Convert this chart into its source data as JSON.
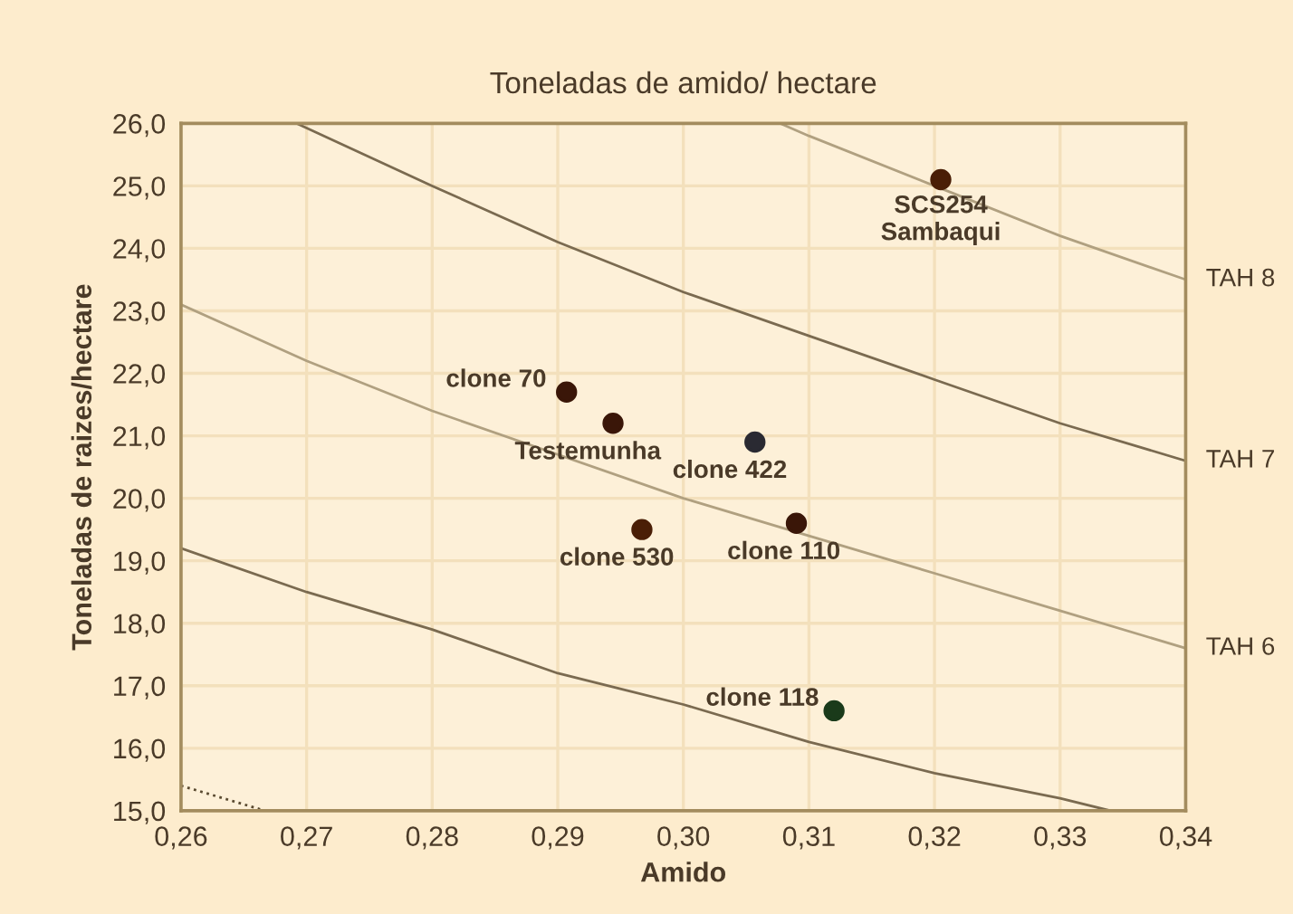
{
  "chart_data": {
    "type": "scatter",
    "title": "Toneladas de amido/ hectare",
    "xlabel": "Amido",
    "ylabel": "Toneladas de raizes/hectare",
    "xlim": [
      0.26,
      0.34
    ],
    "ylim": [
      15,
      26
    ],
    "xticks": [
      {
        "value": 0.26,
        "label": "0,26"
      },
      {
        "value": 0.27,
        "label": "0,27"
      },
      {
        "value": 0.28,
        "label": "0,28"
      },
      {
        "value": 0.29,
        "label": "0,29"
      },
      {
        "value": 0.3,
        "label": "0,30"
      },
      {
        "value": 0.31,
        "label": "0,31"
      },
      {
        "value": 0.32,
        "label": "0,32"
      },
      {
        "value": 0.33,
        "label": "0,33"
      },
      {
        "value": 0.34,
        "label": "0,34"
      }
    ],
    "yticks": [
      {
        "value": 15,
        "label": "15,0"
      },
      {
        "value": 16,
        "label": "16,0"
      },
      {
        "value": 17,
        "label": "17,0"
      },
      {
        "value": 18,
        "label": "18,0"
      },
      {
        "value": 19,
        "label": "19,0"
      },
      {
        "value": 20,
        "label": "20,0"
      },
      {
        "value": 21,
        "label": "21,0"
      },
      {
        "value": 22,
        "label": "22,0"
      },
      {
        "value": 23,
        "label": "23,0"
      },
      {
        "value": 24,
        "label": "24,0"
      },
      {
        "value": 25,
        "label": "25,0"
      },
      {
        "value": 26,
        "label": "26,0"
      }
    ],
    "grid": true,
    "series": [
      {
        "type": "line",
        "marker": "none",
        "line_style": "dotted",
        "color": "#5a4a30",
        "x": [
          0.26,
          0.2667
        ],
        "values": [
          15.4,
          15.0
        ]
      },
      {
        "type": "line",
        "marker": "none",
        "line_style": "solid",
        "color": "#7a6a50",
        "x": [
          0.26,
          0.27,
          0.28,
          0.29,
          0.3,
          0.31,
          0.32,
          0.33,
          0.334
        ],
        "values": [
          19.2,
          18.5,
          17.9,
          17.2,
          16.7,
          16.1,
          15.6,
          15.2,
          15.0
        ]
      },
      {
        "type": "line",
        "marker": "none",
        "line_style": "solid",
        "name": "TAH 6",
        "color": "#b0a080",
        "x": [
          0.26,
          0.27,
          0.28,
          0.29,
          0.3,
          0.31,
          0.32,
          0.33,
          0.34
        ],
        "values": [
          23.1,
          22.2,
          21.4,
          20.7,
          20.0,
          19.4,
          18.8,
          18.2,
          17.6
        ]
      },
      {
        "type": "line",
        "marker": "none",
        "line_style": "solid",
        "name": "TAH 7",
        "color": "#7a6a50",
        "x": [
          0.2692,
          0.28,
          0.29,
          0.3,
          0.31,
          0.32,
          0.33,
          0.34
        ],
        "values": [
          26.0,
          25.0,
          24.1,
          23.3,
          22.6,
          21.9,
          21.2,
          20.6
        ]
      },
      {
        "type": "line",
        "marker": "none",
        "line_style": "solid",
        "name": "TAH 8",
        "color": "#b0a080",
        "x": [
          0.3077,
          0.31,
          0.32,
          0.33,
          0.34
        ],
        "values": [
          26.0,
          25.8,
          25.0,
          24.2,
          23.5
        ]
      },
      {
        "marker": "circle",
        "name": "SCS254\nSambaqui",
        "color": "#4a1e06",
        "x": [
          0.3205
        ],
        "values": [
          25.1
        ]
      },
      {
        "marker": "circle",
        "name": "clone 70",
        "color": "#3a1608",
        "x": [
          0.2907
        ],
        "values": [
          21.7
        ]
      },
      {
        "marker": "circle",
        "name": "Testemunha",
        "color": "#3a1608",
        "x": [
          0.2944
        ],
        "values": [
          21.2
        ]
      },
      {
        "marker": "circle",
        "name": "clone 422",
        "color": "#2a2a32",
        "x": [
          0.3057
        ],
        "values": [
          20.9
        ]
      },
      {
        "marker": "circle",
        "name": "clone 530",
        "color": "#4a1e06",
        "x": [
          0.2967
        ],
        "values": [
          19.5
        ]
      },
      {
        "marker": "circle",
        "name": "clone 110",
        "color": "#3a1608",
        "x": [
          0.309
        ],
        "values": [
          19.6
        ]
      },
      {
        "marker": "circle",
        "name": "clone 118",
        "color": "#1a3a1a",
        "x": [
          0.312
        ],
        "values": [
          16.6
        ]
      }
    ]
  }
}
